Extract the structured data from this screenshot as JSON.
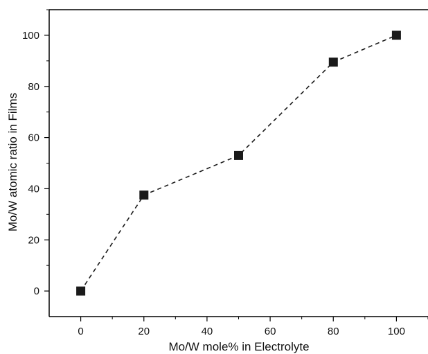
{
  "chart_data": {
    "type": "scatter",
    "xlabel": "Mo/W mole% in Electrolyte",
    "ylabel": "Mo/W atomic ratio in Films",
    "xlim": [
      -10,
      110
    ],
    "ylim": [
      -10,
      110
    ],
    "xticks": [
      0,
      20,
      40,
      60,
      80,
      100
    ],
    "yticks": [
      0,
      20,
      40,
      60,
      80,
      100
    ],
    "x_minor_step": 10,
    "y_minor_step": 10,
    "grid": false,
    "marker": "filled-square",
    "line_style": "dashed",
    "series": [
      {
        "x": [
          0,
          20,
          50,
          80,
          100
        ],
        "y": [
          0,
          37.5,
          53,
          89.5,
          100
        ]
      }
    ],
    "colors": {
      "marker": "#1a1a1a",
      "line": "#1a1a1a",
      "axis": "#000000"
    }
  }
}
